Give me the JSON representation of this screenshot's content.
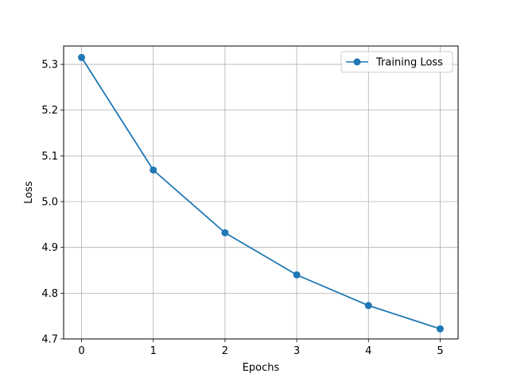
{
  "chart_data": {
    "type": "line",
    "title": "",
    "xlabel": "Epochs",
    "ylabel": "Loss",
    "x": [
      0,
      1,
      2,
      3,
      4,
      5
    ],
    "series": [
      {
        "name": "Training Loss",
        "values": [
          5.315,
          5.069,
          4.932,
          4.84,
          4.773,
          4.722
        ],
        "color": "#1f77b4",
        "marker": "circle"
      }
    ],
    "xlim": [
      -0.25,
      5.25
    ],
    "ylim": [
      4.7,
      5.34
    ],
    "xticks": [
      0,
      1,
      2,
      3,
      4,
      5
    ],
    "xtick_labels": [
      "0",
      "1",
      "2",
      "3",
      "4",
      "5"
    ],
    "yticks": [
      4.7,
      4.8,
      4.9,
      5.0,
      5.1,
      5.2,
      5.3
    ],
    "ytick_labels": [
      "4.7",
      "4.8",
      "4.9",
      "5.0",
      "5.1",
      "5.2",
      "5.3"
    ],
    "grid": true,
    "legend_position": "top-right"
  }
}
